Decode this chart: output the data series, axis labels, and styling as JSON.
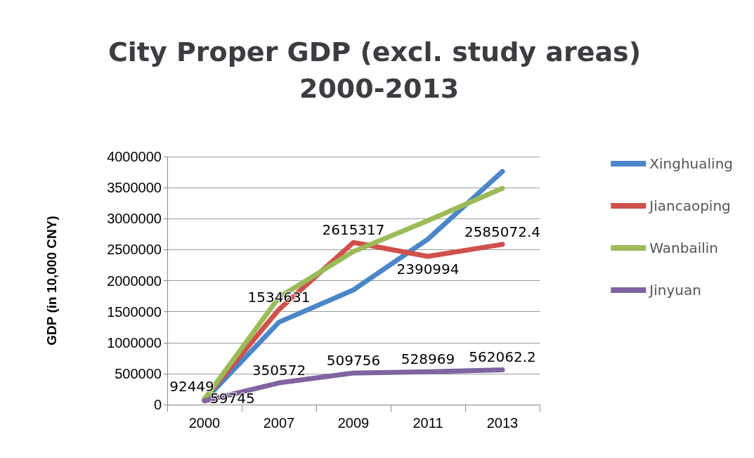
{
  "chart_data": {
    "type": "line",
    "title": "City Proper GDP (excl. study areas) 2000-2013",
    "ylabel": "GDP (in 10,000 CNY)",
    "categories": [
      "2000",
      "2007",
      "2009",
      "2011",
      "2013"
    ],
    "series": [
      {
        "name": "Xinghualing",
        "color": "#4a86c8",
        "values": [
          70000,
          1330000,
          1850000,
          2670000,
          3760000
        ]
      },
      {
        "name": "Jiancaoping",
        "color": "#d0504c",
        "values": [
          92449,
          1534631,
          2615317,
          2390994,
          2585072.4
        ],
        "value_labels": [
          "92449",
          "1534631",
          "2615317",
          "2390994",
          "2585072.4"
        ]
      },
      {
        "name": "Wanbailin",
        "color": "#9bbb59",
        "values": [
          90000,
          1730000,
          2470000,
          2970000,
          3490000
        ]
      },
      {
        "name": "Jinyuan",
        "color": "#8064a2",
        "values": [
          59745,
          350572,
          509756,
          528969,
          562062.2
        ],
        "value_labels": [
          "59745",
          "350572",
          "509756",
          "528969",
          "562062.2"
        ]
      }
    ],
    "ylim": [
      0,
      4000000
    ],
    "yticks": [
      0,
      500000,
      1000000,
      1500000,
      2000000,
      2500000,
      3000000,
      3500000,
      4000000
    ],
    "grid": "y",
    "legend": "right",
    "marker": "none",
    "line_style": "solid"
  }
}
